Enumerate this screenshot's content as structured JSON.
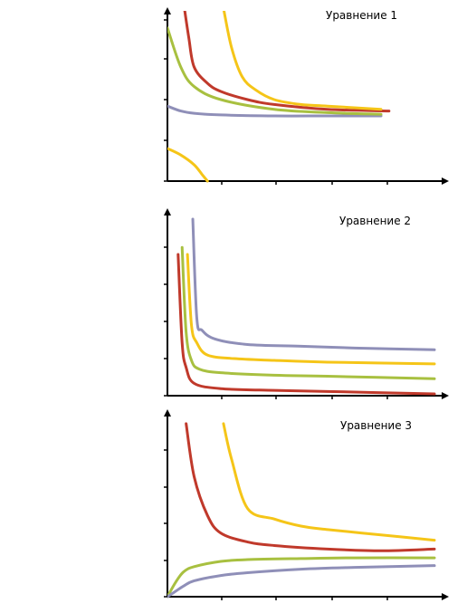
{
  "chart_data": [
    {
      "type": "line",
      "title": "Уравнение 1",
      "xlabel": "",
      "ylabel": "",
      "grid": false,
      "xlim": [
        0,
        10
      ],
      "ylim": [
        -1,
        4
      ],
      "series": [
        {
          "color": "#8f8fb8",
          "x": [
            0,
            0.5,
            1,
            2,
            4,
            6,
            8
          ],
          "y": [
            1.3,
            1.15,
            1.08,
            1.03,
            1.0,
            1.0,
            1.0
          ]
        },
        {
          "color": "#a8c040",
          "x": [
            0,
            0.5,
            1,
            2,
            4,
            6,
            8
          ],
          "y": [
            3.7,
            2.5,
            1.9,
            1.5,
            1.2,
            1.1,
            1.05
          ]
        },
        {
          "color": "#c0392b",
          "x": [
            0.6,
            0.8,
            1,
            1.5,
            2,
            3,
            4,
            6,
            8.3
          ],
          "y": [
            4.5,
            3.4,
            2.5,
            2.0,
            1.75,
            1.5,
            1.35,
            1.2,
            1.15
          ]
        },
        {
          "color": "#f5c518",
          "x": [
            2.1,
            2.4,
            2.8,
            3.3,
            4,
            5,
            6,
            8
          ],
          "y": [
            4.3,
            3.1,
            2.2,
            1.8,
            1.5,
            1.35,
            1.3,
            1.2
          ]
        },
        {
          "color": "#f5c518",
          "x": [
            0,
            0.5,
            1,
            1.3,
            1.5
          ],
          "y": [
            0,
            -0.2,
            -0.5,
            -0.8,
            -1.0
          ]
        }
      ]
    },
    {
      "type": "line",
      "title": "Уравнение 2",
      "xlabel": "",
      "ylabel": "",
      "grid": false,
      "xlim": [
        0,
        10
      ],
      "ylim": [
        0,
        5
      ],
      "series": [
        {
          "color": "#c0392b",
          "x": [
            0.4,
            0.55,
            0.7,
            1,
            2,
            4,
            6,
            10
          ],
          "y": [
            4.0,
            1.5,
            0.8,
            0.35,
            0.2,
            0.15,
            0.12,
            0.05
          ]
        },
        {
          "color": "#a8c040",
          "x": [
            0.55,
            0.7,
            0.9,
            1.2,
            2,
            4,
            6,
            10
          ],
          "y": [
            4.2,
            1.8,
            1.0,
            0.75,
            0.65,
            0.58,
            0.55,
            0.48
          ]
        },
        {
          "color": "#f5c518",
          "x": [
            0.75,
            0.9,
            1.1,
            1.5,
            2.5,
            4,
            6,
            10
          ],
          "y": [
            4.0,
            2.0,
            1.5,
            1.15,
            1.05,
            1.0,
            0.95,
            0.9
          ]
        },
        {
          "color": "#8f8fb8",
          "x": [
            0.95,
            1.1,
            1.3,
            1.8,
            3,
            5,
            7,
            10
          ],
          "y": [
            5.0,
            2.2,
            1.85,
            1.6,
            1.45,
            1.4,
            1.35,
            1.3
          ]
        }
      ]
    },
    {
      "type": "line",
      "title": "Уравнение 3",
      "xlabel": "",
      "ylabel": "",
      "grid": false,
      "xlim": [
        0,
        10
      ],
      "ylim": [
        0,
        5
      ],
      "series": [
        {
          "color": "#c0392b",
          "x": [
            0.7,
            1,
            1.5,
            2,
            3,
            4,
            6,
            8,
            10
          ],
          "y": [
            4.9,
            3.4,
            2.3,
            1.8,
            1.55,
            1.45,
            1.35,
            1.3,
            1.35
          ]
        },
        {
          "color": "#f5c518",
          "x": [
            2.1,
            2.4,
            3,
            4,
            5,
            6,
            8,
            10
          ],
          "y": [
            4.9,
            3.9,
            2.5,
            2.2,
            2.0,
            1.9,
            1.75,
            1.6
          ]
        },
        {
          "color": "#a8c040",
          "x": [
            0,
            0.3,
            0.6,
            1,
            2,
            3,
            5,
            7,
            10
          ],
          "y": [
            0,
            0.4,
            0.7,
            0.85,
            1.0,
            1.05,
            1.08,
            1.1,
            1.1
          ]
        },
        {
          "color": "#8f8fb8",
          "x": [
            0,
            0.3,
            0.6,
            1,
            2,
            3,
            5,
            7,
            10
          ],
          "y": [
            0,
            0.15,
            0.3,
            0.45,
            0.6,
            0.68,
            0.78,
            0.83,
            0.88
          ]
        }
      ]
    }
  ]
}
